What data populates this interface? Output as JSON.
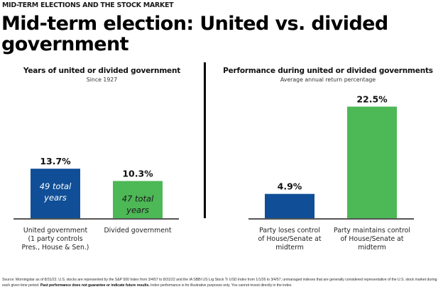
{
  "header": {
    "eyebrow": "MID-TERM ELECTIONS AND THE STOCK MARKET",
    "title_line1": "Mid-term election: United vs. divided",
    "title_line2": "government"
  },
  "colors": {
    "blue": "#104f97",
    "green": "#4db856",
    "axis": "#555555",
    "divider": "#000000"
  },
  "chart_data": [
    {
      "type": "bar",
      "title": "Years of united or divided government",
      "subtitle": "Since 1927",
      "categories": [
        "United government (1 party controls Pres., House & Sen.)",
        "Divided government"
      ],
      "category_lines": [
        [
          "United government",
          "(1 party controls",
          "Pres., House & Sen.)"
        ],
        [
          "Divided government"
        ]
      ],
      "values": [
        13.7,
        10.3
      ],
      "value_labels": [
        "13.7%",
        "10.3%"
      ],
      "bar_inner_labels": [
        [
          "49 total",
          "years"
        ],
        [
          "47 total",
          "years"
        ]
      ],
      "colors": [
        "#104f97",
        "#4db856"
      ],
      "inner_label_colors": [
        "#ffffff",
        "#1a1a1a"
      ],
      "xlabel": "",
      "ylabel": "",
      "ylim": [
        0,
        22.5
      ],
      "grid": false,
      "legend": "none"
    },
    {
      "type": "bar",
      "title": "Performance during united or divided governments",
      "subtitle": "Average annual return percentage",
      "categories": [
        "Party loses control of House/Senate at midterm",
        "Party maintains control of House/Senate at midterm"
      ],
      "category_lines": [
        [
          "Party loses control",
          "of House/Senate at",
          "midterm"
        ],
        [
          "Party maintains control",
          "of House/Senate at",
          "midterm"
        ]
      ],
      "values": [
        4.9,
        22.5
      ],
      "value_labels": [
        "4.9%",
        "22.5%"
      ],
      "bar_inner_labels": [
        [],
        []
      ],
      "colors": [
        "#104f97",
        "#4db856"
      ],
      "inner_label_colors": [
        "#ffffff",
        "#1a1a1a"
      ],
      "xlabel": "",
      "ylabel": "",
      "ylim": [
        0,
        22.5
      ],
      "grid": false,
      "legend": "none"
    }
  ],
  "footnote": {
    "text_a": "Source: Morningstar as of 8/31/22. U.S. stocks are represented by the S&P 500 Index from 3/4/57 to 8/31/22 and the IA SBBI US Lrg Stock Tr USD Index from 1/1/26 to 3/4/57, unmanaged indexes that are generally considered representative of the U.S. stock market during each given time period. ",
    "bold": "Past performance does not guarantee or indicate future results.",
    "text_b": " Index performance is for illustrative purposes only. You cannot invest directly in the index."
  }
}
